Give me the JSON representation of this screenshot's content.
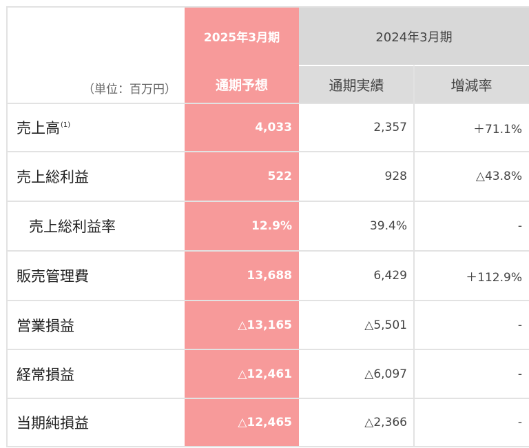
{
  "header": {
    "unit_label": "（単位：百万円）",
    "forecast_period": "2025年3月期",
    "forecast_sub": "通期予想",
    "prior_period": "2024年3月期",
    "prior_actual_sub": "通期実績",
    "change_sub": "増減率"
  },
  "rows": [
    {
      "label": "売上高",
      "note": "(1)",
      "forecast": "4,033",
      "actual": "2,357",
      "change": "＋71.1%"
    },
    {
      "label": "売上総利益",
      "note": "",
      "forecast": "522",
      "actual": "928",
      "change": "△43.8%"
    },
    {
      "label": "売上総利益率",
      "note": "",
      "forecast": "12.9%",
      "actual": "39.4%",
      "change": "-"
    },
    {
      "label": "販売管理費",
      "note": "",
      "forecast": "13,688",
      "actual": "6,429",
      "change": "＋112.9%"
    },
    {
      "label": "営業損益",
      "note": "",
      "forecast": "△13,165",
      "actual": "△5,501",
      "change": "-"
    },
    {
      "label": "経常損益",
      "note": "",
      "forecast": "△12,461",
      "actual": "△6,097",
      "change": "-"
    },
    {
      "label": "当期純損益",
      "note": "",
      "forecast": "△12,465",
      "actual": "△2,366",
      "change": "-"
    }
  ],
  "colors": {
    "forecast_fill": "#f79a9a",
    "header_fill": "#d8d8d8",
    "grid_line": "#e2e2e2"
  }
}
